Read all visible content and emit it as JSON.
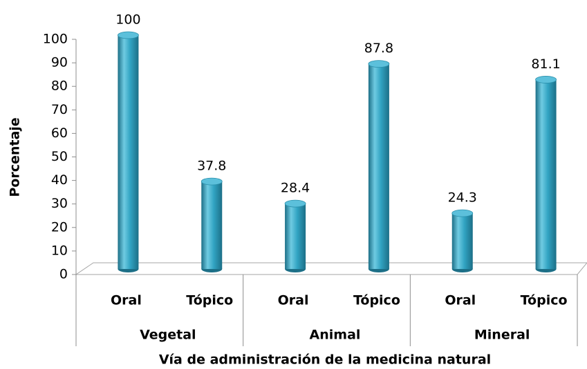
{
  "chart_data": {
    "type": "bar",
    "y_label": "Porcentaje",
    "x_label": "Vía de administración de la medicina natural",
    "categories": [
      "Oral",
      "Tópico",
      "Oral",
      "Tópico",
      "Oral",
      "Tópico"
    ],
    "groups": [
      "Vegetal",
      "Animal",
      "Mineral"
    ],
    "values": [
      100,
      37.8,
      28.4,
      87.8,
      24.3,
      81.1
    ],
    "color": "#31a3c2",
    "ylim": [
      0,
      100
    ],
    "yticks": [
      0,
      10,
      20,
      30,
      40,
      50,
      60,
      70,
      80,
      90,
      100
    ]
  }
}
